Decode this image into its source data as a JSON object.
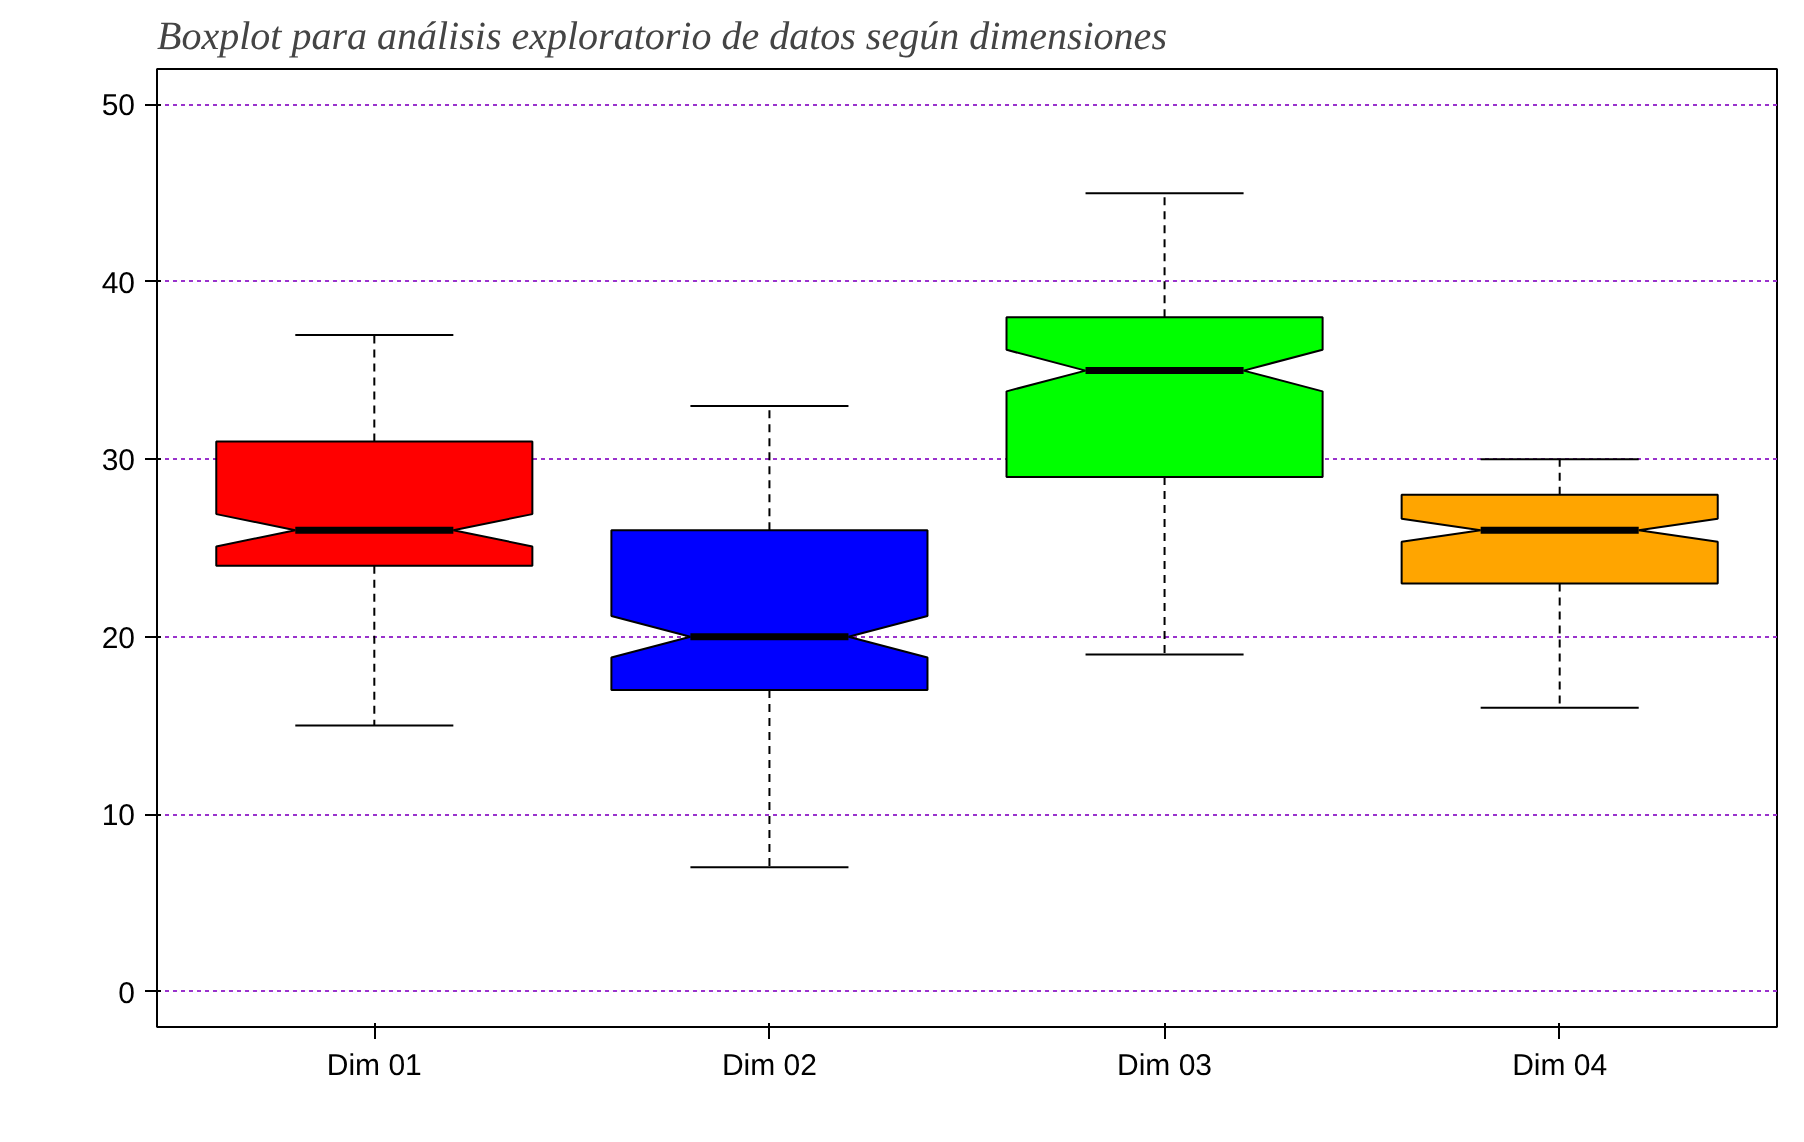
{
  "chart_data": {
    "type": "box",
    "title": "Boxplot para análisis exploratorio de datos según dimensiones",
    "categories": [
      "Dim 01",
      "Dim 02",
      "Dim 03",
      "Dim 04"
    ],
    "boxes": [
      {
        "low": 15,
        "q1": 24,
        "median": 26,
        "q3": 31,
        "high": 37
      },
      {
        "low": 7,
        "q1": 17,
        "median": 20,
        "q3": 26,
        "high": 33
      },
      {
        "low": 19,
        "q1": 29,
        "median": 35,
        "q3": 38,
        "high": 45
      },
      {
        "low": 16,
        "q1": 23,
        "median": 26,
        "q3": 28,
        "high": 30
      }
    ],
    "colors": [
      "#ff0000",
      "#0000ff",
      "#00ff00",
      "#ffa500"
    ],
    "ylim": [
      -2,
      52
    ],
    "yticks": [
      0,
      10,
      20,
      30,
      40,
      50
    ],
    "grid": "y"
  }
}
